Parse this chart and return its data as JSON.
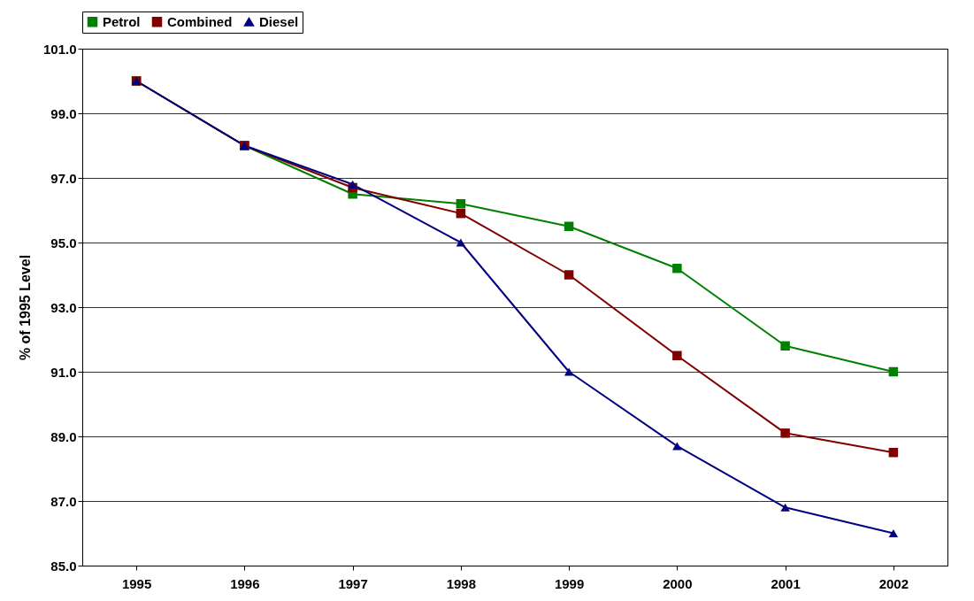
{
  "chart_data": {
    "type": "line",
    "ylabel": "% of 1995 Level",
    "categories": [
      "1995",
      "1996",
      "1997",
      "1998",
      "1999",
      "2000",
      "2001",
      "2002"
    ],
    "series": [
      {
        "name": "Petrol",
        "color": "#008000",
        "marker": "square",
        "values": [
          100,
          98,
          96.5,
          96.2,
          95.5,
          94.2,
          91.8,
          91.0
        ]
      },
      {
        "name": "Combined",
        "color": "#800000",
        "marker": "square",
        "values": [
          100,
          98,
          96.7,
          95.9,
          94.0,
          91.5,
          89.1,
          88.5
        ]
      },
      {
        "name": "Diesel",
        "color": "#000080",
        "marker": "triangle",
        "values": [
          100,
          98,
          96.8,
          95.0,
          91.0,
          88.7,
          86.8,
          86.0
        ]
      }
    ],
    "ylim": [
      85,
      101
    ],
    "yticks": [
      {
        "value": 85,
        "label": "85.0"
      },
      {
        "value": 87,
        "label": "87.0"
      },
      {
        "value": 89,
        "label": "89.0"
      },
      {
        "value": 91,
        "label": "91.0"
      },
      {
        "value": 93,
        "label": "93.0"
      },
      {
        "value": 95,
        "label": "95.0"
      },
      {
        "value": 97,
        "label": "97.0"
      },
      {
        "value": 99,
        "label": "99.0"
      },
      {
        "value": 101,
        "label": "101.0"
      }
    ],
    "grid": "y",
    "legend": "top",
    "line_style": "solid"
  }
}
